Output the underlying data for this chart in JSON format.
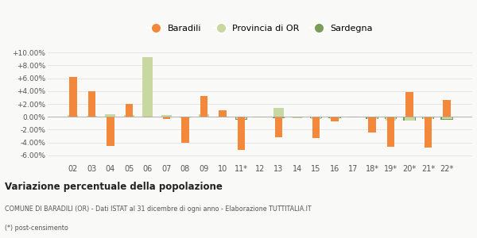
{
  "categories": [
    "02",
    "03",
    "04",
    "05",
    "06",
    "07",
    "08",
    "09",
    "10",
    "11*",
    "12",
    "13",
    "14",
    "15",
    "16",
    "17",
    "18*",
    "19*",
    "20*",
    "21*",
    "22*"
  ],
  "baradili": [
    6.25,
    3.95,
    -4.55,
    2.05,
    -0.15,
    -0.3,
    -4.1,
    3.25,
    1.05,
    -5.15,
    -0.05,
    -3.15,
    -0.05,
    -3.3,
    -0.65,
    -0.05,
    -2.45,
    -4.7,
    3.85,
    -4.75,
    2.6
  ],
  "provincia": [
    0.3,
    0.2,
    0.4,
    0.3,
    9.3,
    0.25,
    -0.2,
    0.35,
    -0.15,
    -0.35,
    -0.05,
    1.4,
    -0.25,
    -0.35,
    -0.35,
    -0.1,
    -0.35,
    -0.55,
    -0.55,
    -0.35,
    -0.35
  ],
  "sardegna": [
    0.05,
    0.05,
    0.05,
    0.05,
    0.05,
    0.05,
    -0.1,
    0.05,
    -0.05,
    -0.5,
    -0.1,
    -0.2,
    -0.1,
    -0.2,
    -0.2,
    -0.1,
    -0.3,
    -0.35,
    -0.6,
    -0.35,
    -0.45
  ],
  "color_baradili": "#f4883a",
  "color_provincia": "#c8d8a0",
  "color_sardegna": "#7a9e5a",
  "title": "Variazione percentuale della popolazione",
  "subtitle1": "COMUNE DI BARADILI (OR) - Dati ISTAT al 31 dicembre di ogni anno - Elaborazione TUTTITALIA.IT",
  "subtitle2": "(*) post-censimento",
  "ylim_min": -7.0,
  "ylim_max": 11.5,
  "yticks": [
    -6.0,
    -4.0,
    -2.0,
    0.0,
    2.0,
    4.0,
    6.0,
    8.0,
    10.0
  ],
  "background_color": "#f9f9f7"
}
